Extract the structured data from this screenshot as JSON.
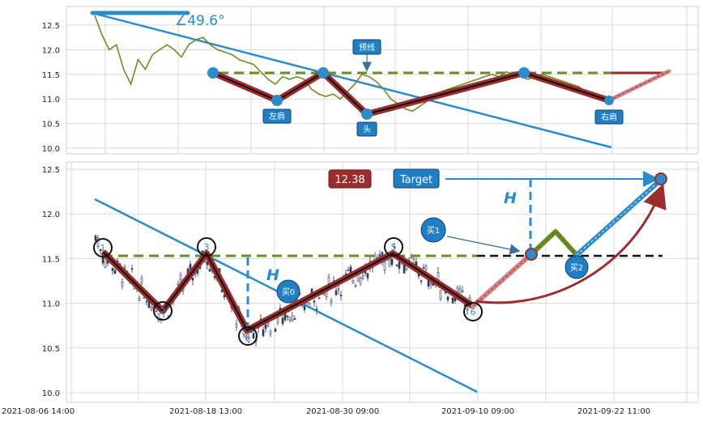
{
  "chart_data": [
    {
      "type": "line",
      "panel": "top",
      "ylim": [
        9.95,
        12.8
      ],
      "yticks": [
        "12.5",
        "12.0",
        "11.5",
        "11.0",
        "10.5",
        "10.0"
      ],
      "grid": true,
      "angle_label": "∠49.6°",
      "neckline": 11.5,
      "pivots": [
        {
          "name": "",
          "y": 11.55
        },
        {
          "name": "左肩",
          "y": 11.0
        },
        {
          "name": "",
          "y": 11.55
        },
        {
          "name": "头",
          "y": 10.7
        },
        {
          "name": "",
          "y": 11.55
        },
        {
          "name": "右肩",
          "y": 10.95
        }
      ],
      "annotation_neckline": "预线",
      "price_series": [
        12.7,
        12.3,
        12.0,
        12.1,
        11.6,
        11.3,
        11.8,
        11.6,
        11.9,
        12.0,
        12.1,
        12.0,
        11.85,
        12.1,
        12.2,
        12.25,
        12.1,
        12.0,
        11.95,
        11.9,
        11.8,
        11.75,
        11.7,
        11.55,
        11.4,
        11.3,
        11.45,
        11.4,
        11.45,
        11.4,
        11.2,
        11.1,
        11.05,
        11.1,
        11.0,
        11.15,
        11.3,
        11.5,
        11.45,
        11.35,
        11.2,
        11.0,
        10.9,
        10.8,
        10.75,
        10.85,
        10.95,
        11.05,
        11.15,
        11.2,
        11.25,
        11.3,
        11.35,
        11.4,
        11.45,
        11.5,
        11.45,
        11.55,
        11.5,
        11.45,
        11.4,
        11.45,
        11.5,
        11.45,
        11.4,
        11.35,
        11.3,
        11.25,
        11.15,
        11.1,
        11.05,
        11.0
      ]
    },
    {
      "type": "line",
      "panel": "bottom",
      "ylim": [
        9.95,
        12.55
      ],
      "yticks": [
        "12.5",
        "12.0",
        "11.5",
        "11.0",
        "10.5",
        "10.0"
      ],
      "xticks": [
        "2021-08-06 14:00",
        "2021-08-18 13:00",
        "2021-08-30 09:00",
        "2021-09-10 09:00",
        "2021-09-22 11:00"
      ],
      "grid": true,
      "neckline": 11.52,
      "pivots": [
        {
          "label": "1",
          "y": 11.55
        },
        {
          "label": "2",
          "y": 10.9
        },
        {
          "label": "3",
          "y": 11.55
        },
        {
          "label": "4",
          "y": 10.63
        },
        {
          "label": "5",
          "y": 11.55
        },
        {
          "label": "6",
          "y": 10.9
        }
      ],
      "height_marker": "H",
      "target_value": "12.38",
      "target_label": "Target",
      "buy_labels": [
        "买0",
        "买1",
        "买2"
      ],
      "projection": [
        {
          "point": "6",
          "y": 10.9
        },
        {
          "point": "breakout",
          "y": 11.55
        },
        {
          "point": "retest-high",
          "y": 11.82
        },
        {
          "point": "pullback",
          "y": 11.52
        },
        {
          "point": "target",
          "y": 12.38
        }
      ]
    }
  ]
}
